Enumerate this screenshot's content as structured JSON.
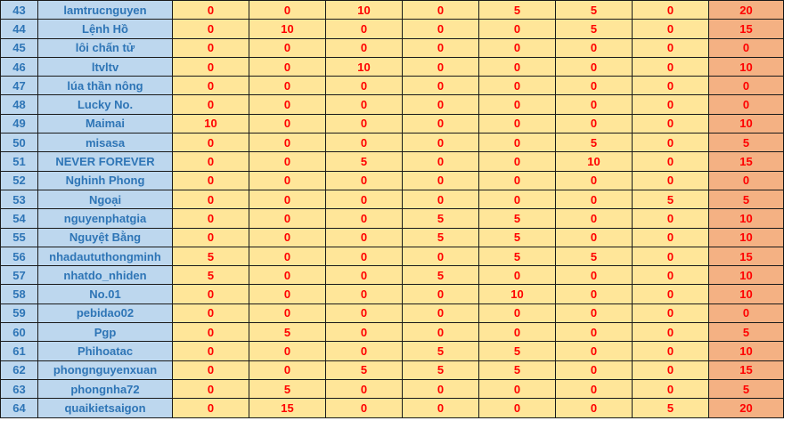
{
  "colors": {
    "name_bg": "#bdd7ee",
    "name_text": "#2e75b6",
    "score_bg": "#ffe699",
    "total_bg": "#f4b183",
    "number_text": "#ff0000"
  },
  "rows": [
    {
      "no": "43",
      "name": "lamtrucnguyen",
      "scores": [
        "0",
        "0",
        "10",
        "0",
        "5",
        "5",
        "0"
      ],
      "total": "20"
    },
    {
      "no": "44",
      "name": "Lệnh Hồ",
      "scores": [
        "0",
        "10",
        "0",
        "0",
        "0",
        "5",
        "0"
      ],
      "total": "15"
    },
    {
      "no": "45",
      "name": "lôi chấn tử",
      "scores": [
        "0",
        "0",
        "0",
        "0",
        "0",
        "0",
        "0"
      ],
      "total": "0"
    },
    {
      "no": "46",
      "name": "ltvltv",
      "scores": [
        "0",
        "0",
        "10",
        "0",
        "0",
        "0",
        "0"
      ],
      "total": "10"
    },
    {
      "no": "47",
      "name": "lúa thần nông",
      "scores": [
        "0",
        "0",
        "0",
        "0",
        "0",
        "0",
        "0"
      ],
      "total": "0"
    },
    {
      "no": "48",
      "name": "Lucky No.",
      "scores": [
        "0",
        "0",
        "0",
        "0",
        "0",
        "0",
        "0"
      ],
      "total": "0"
    },
    {
      "no": "49",
      "name": "Maimai",
      "scores": [
        "10",
        "0",
        "0",
        "0",
        "0",
        "0",
        "0"
      ],
      "total": "10"
    },
    {
      "no": "50",
      "name": "misasa",
      "scores": [
        "0",
        "0",
        "0",
        "0",
        "0",
        "5",
        "0"
      ],
      "total": "5"
    },
    {
      "no": "51",
      "name": "NEVER FOREVER",
      "scores": [
        "0",
        "0",
        "5",
        "0",
        "0",
        "10",
        "0"
      ],
      "total": "15"
    },
    {
      "no": "52",
      "name": "Nghinh Phong",
      "scores": [
        "0",
        "0",
        "0",
        "0",
        "0",
        "0",
        "0"
      ],
      "total": "0"
    },
    {
      "no": "53",
      "name": "Ngoại",
      "scores": [
        "0",
        "0",
        "0",
        "0",
        "0",
        "0",
        "5"
      ],
      "total": "5"
    },
    {
      "no": "54",
      "name": "nguyenphatgia",
      "scores": [
        "0",
        "0",
        "0",
        "5",
        "5",
        "0",
        "0"
      ],
      "total": "10"
    },
    {
      "no": "55",
      "name": "Nguyệt Bằng",
      "scores": [
        "0",
        "0",
        "0",
        "5",
        "5",
        "0",
        "0"
      ],
      "total": "10"
    },
    {
      "no": "56",
      "name": "nhadaututhongminh",
      "scores": [
        "5",
        "0",
        "0",
        "0",
        "5",
        "5",
        "0"
      ],
      "total": "15"
    },
    {
      "no": "57",
      "name": "nhatdo_nhiden",
      "scores": [
        "5",
        "0",
        "0",
        "5",
        "0",
        "0",
        "0"
      ],
      "total": "10"
    },
    {
      "no": "58",
      "name": "No.01",
      "scores": [
        "0",
        "0",
        "0",
        "0",
        "10",
        "0",
        "0"
      ],
      "total": "10"
    },
    {
      "no": "59",
      "name": "pebidao02",
      "scores": [
        "0",
        "0",
        "0",
        "0",
        "0",
        "0",
        "0"
      ],
      "total": "0"
    },
    {
      "no": "60",
      "name": "Pgp",
      "scores": [
        "0",
        "5",
        "0",
        "0",
        "0",
        "0",
        "0"
      ],
      "total": "5"
    },
    {
      "no": "61",
      "name": "Phihoatac",
      "scores": [
        "0",
        "0",
        "0",
        "5",
        "5",
        "0",
        "0"
      ],
      "total": "10"
    },
    {
      "no": "62",
      "name": "phongnguyenxuan",
      "scores": [
        "0",
        "0",
        "5",
        "5",
        "5",
        "0",
        "0"
      ],
      "total": "15"
    },
    {
      "no": "63",
      "name": "phongnha72",
      "scores": [
        "0",
        "5",
        "0",
        "0",
        "0",
        "0",
        "0"
      ],
      "total": "5"
    },
    {
      "no": "64",
      "name": "quaikietsaigon",
      "scores": [
        "0",
        "15",
        "0",
        "0",
        "0",
        "0",
        "5"
      ],
      "total": "20"
    }
  ]
}
